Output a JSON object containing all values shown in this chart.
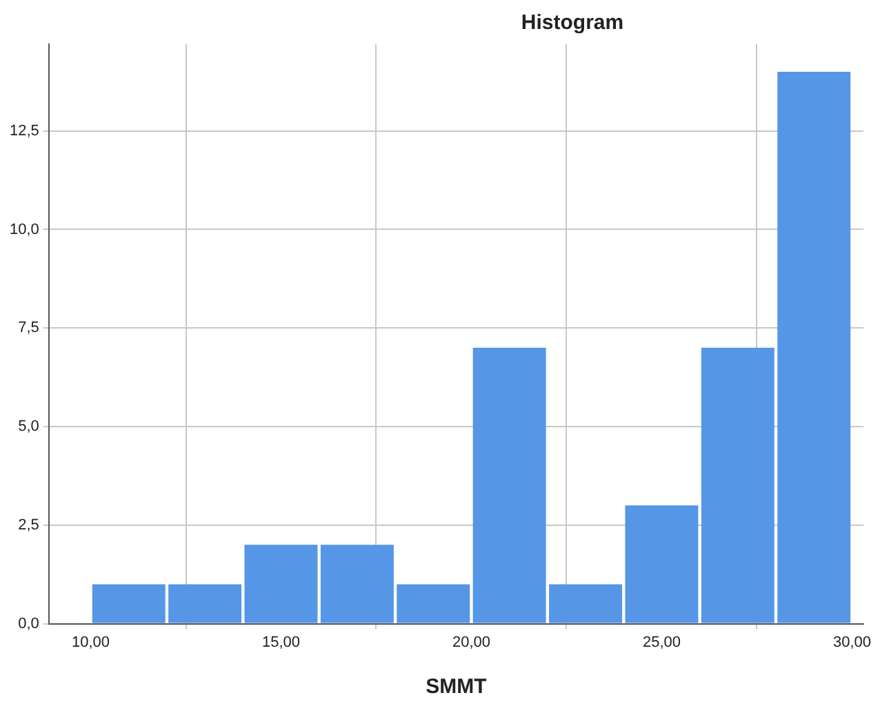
{
  "chart_data": {
    "type": "histogram",
    "title": "Histogram",
    "xlabel": "SMMT",
    "bins": [
      10,
      12,
      14,
      16,
      18,
      20,
      22,
      24,
      26,
      28,
      30
    ],
    "values": [
      1,
      1,
      2,
      2,
      1,
      7,
      1,
      3,
      7,
      14
    ],
    "color": "#5596e6",
    "xlim": [
      8.9,
      30.3
    ],
    "xticks": [
      {
        "value": 10,
        "label": "10,00"
      },
      {
        "value": 15,
        "label": "15,00"
      },
      {
        "value": 20,
        "label": "20,00"
      },
      {
        "value": 25,
        "label": "25,00"
      },
      {
        "value": 30,
        "label": "30,00"
      }
    ],
    "ylim": [
      0,
      14.7
    ],
    "yticks": [
      {
        "value": 0,
        "label": "0,0"
      },
      {
        "value": 2.5,
        "label": "2,5"
      },
      {
        "value": 5,
        "label": "5,0"
      },
      {
        "value": 7.5,
        "label": "7,5"
      },
      {
        "value": 10,
        "label": "10,0"
      },
      {
        "value": 12.5,
        "label": "12,5"
      }
    ],
    "grid": true
  }
}
